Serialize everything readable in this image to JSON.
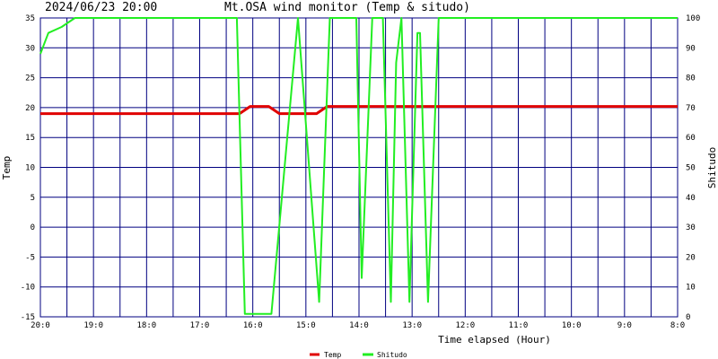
{
  "header": {
    "timestamp": "2024/06/23 20:00",
    "title": "Mt.OSA wind monitor (Temp & situdo)"
  },
  "chart_data": {
    "type": "line",
    "xlabel": "Time elapsed (Hour)",
    "ylabel_left": "Temp",
    "ylabel_right": "Shitudo",
    "x_range": [
      20,
      8
    ],
    "x_ticks": [
      {
        "value": 20,
        "label": "20:0"
      },
      {
        "value": 19,
        "label": "19:0"
      },
      {
        "value": 18,
        "label": "18:0"
      },
      {
        "value": 17,
        "label": "17:0"
      },
      {
        "value": 16,
        "label": "16:0"
      },
      {
        "value": 15,
        "label": "15:0"
      },
      {
        "value": 14,
        "label": "14:0"
      },
      {
        "value": 13,
        "label": "13:0"
      },
      {
        "value": 12,
        "label": "12:0"
      },
      {
        "value": 11,
        "label": "11:0"
      },
      {
        "value": 10,
        "label": "10:0"
      },
      {
        "value": 9,
        "label": "9:0"
      },
      {
        "value": 8,
        "label": "8:0"
      }
    ],
    "y_left_range": [
      -15,
      35
    ],
    "y_left_ticks": [
      35,
      30,
      25,
      20,
      15,
      10,
      5,
      0,
      -5,
      -10,
      -15
    ],
    "y_right_range": [
      0,
      100
    ],
    "y_right_ticks": [
      100,
      90,
      80,
      70,
      60,
      50,
      40,
      30,
      20,
      10,
      0
    ],
    "grid": true,
    "legend_position": "bottom-center",
    "series": [
      {
        "name": "Temp",
        "axis": "left",
        "color": "#e00000",
        "points": [
          [
            20.0,
            19
          ],
          [
            16.25,
            19
          ],
          [
            16.05,
            20.2
          ],
          [
            15.7,
            20.2
          ],
          [
            15.5,
            19
          ],
          [
            14.8,
            19
          ],
          [
            14.6,
            20.2
          ],
          [
            8.0,
            20.2
          ]
        ]
      },
      {
        "name": "Shitudo",
        "axis": "right",
        "color": "#22ee22",
        "points": [
          [
            20.0,
            88
          ],
          [
            19.85,
            95
          ],
          [
            19.6,
            97
          ],
          [
            19.35,
            100
          ],
          [
            16.3,
            100
          ],
          [
            16.15,
            1
          ],
          [
            15.65,
            1
          ],
          [
            15.15,
            100
          ],
          [
            14.75,
            5
          ],
          [
            14.55,
            100
          ],
          [
            14.05,
            100
          ],
          [
            13.95,
            13
          ],
          [
            13.75,
            100
          ],
          [
            13.55,
            100
          ],
          [
            13.4,
            5
          ],
          [
            13.3,
            85
          ],
          [
            13.2,
            100
          ],
          [
            13.05,
            5
          ],
          [
            12.9,
            95
          ],
          [
            12.85,
            95
          ],
          [
            12.7,
            5
          ],
          [
            12.5,
            100
          ],
          [
            8.0,
            100
          ]
        ]
      }
    ]
  }
}
